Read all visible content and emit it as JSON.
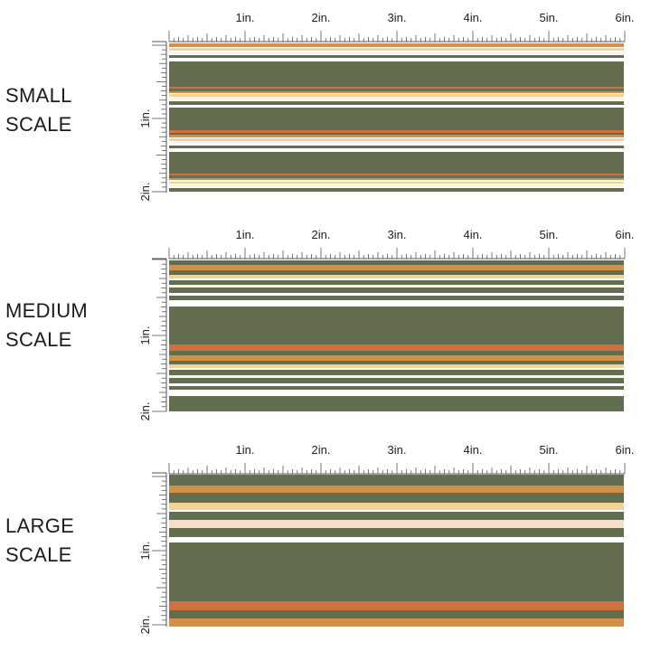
{
  "colors": {
    "olive": "#636d4f",
    "orange": "#d0703e",
    "mustard": "#d28f45",
    "cream": "#f4d293",
    "ivory": "#fbf5e6",
    "peach": "#f8ddc9",
    "white": "#ffffff",
    "ruler": "#555555"
  },
  "ruler": {
    "inch_labels": [
      "1in.",
      "2in.",
      "3in.",
      "4in.",
      "5in.",
      "6in."
    ]
  },
  "sections": [
    {
      "id": "small",
      "label": "SMALL\nSCALE",
      "vertical_labels": [
        "1in.",
        "2in."
      ],
      "stripes": [
        [
          "mustard",
          3
        ],
        [
          "white",
          1
        ],
        [
          "cream",
          2
        ],
        [
          "white",
          1
        ],
        [
          "ivory",
          2
        ],
        [
          "white",
          1
        ],
        [
          "olive",
          3
        ],
        [
          "white",
          3
        ],
        [
          "olive",
          22
        ],
        [
          "orange",
          2
        ],
        [
          "olive",
          2
        ],
        [
          "mustard",
          2
        ],
        [
          "white",
          1
        ],
        [
          "cream",
          2
        ],
        [
          "white",
          1
        ],
        [
          "ivory",
          2
        ],
        [
          "white",
          1
        ],
        [
          "olive",
          3
        ],
        [
          "white",
          3
        ],
        [
          "olive",
          20
        ],
        [
          "orange",
          2
        ],
        [
          "olive",
          2
        ],
        [
          "mustard",
          2
        ],
        [
          "white",
          1
        ],
        [
          "cream",
          2
        ],
        [
          "white",
          1
        ],
        [
          "ivory",
          2
        ],
        [
          "white",
          1
        ],
        [
          "olive",
          3
        ],
        [
          "white",
          3
        ],
        [
          "olive",
          19
        ],
        [
          "orange",
          2
        ],
        [
          "olive",
          2
        ],
        [
          "mustard",
          2
        ],
        [
          "white",
          1
        ],
        [
          "cream",
          2
        ],
        [
          "white",
          1
        ],
        [
          "ivory",
          2
        ],
        [
          "white",
          1
        ],
        [
          "olive",
          3
        ],
        [
          "white",
          1
        ]
      ]
    },
    {
      "id": "medium",
      "label": "MEDIUM\nSCALE",
      "vertical_labels": [
        "1in.",
        "2in."
      ],
      "stripes": [
        [
          "olive",
          5
        ],
        [
          "mustard",
          6
        ],
        [
          "olive",
          4
        ],
        [
          "cream",
          4
        ],
        [
          "white",
          2
        ],
        [
          "olive",
          5
        ],
        [
          "ivory",
          3
        ],
        [
          "olive",
          6
        ],
        [
          "white",
          3
        ],
        [
          "olive",
          4
        ],
        [
          "white",
          7
        ],
        [
          "olive",
          41
        ],
        [
          "orange",
          6
        ],
        [
          "olive",
          5
        ],
        [
          "mustard",
          6
        ],
        [
          "olive",
          4
        ],
        [
          "cream",
          4
        ],
        [
          "white",
          2
        ],
        [
          "olive",
          5
        ],
        [
          "ivory",
          3
        ],
        [
          "olive",
          6
        ],
        [
          "white",
          3
        ],
        [
          "olive",
          4
        ],
        [
          "white",
          7
        ],
        [
          "olive",
          16
        ]
      ]
    },
    {
      "id": "large",
      "label": "LARGE\nSCALE",
      "vertical_labels": [
        "1in.",
        "2in."
      ],
      "stripes": [
        [
          "olive",
          12
        ],
        [
          "mustard",
          8
        ],
        [
          "olive",
          10
        ],
        [
          "cream",
          8
        ],
        [
          "white",
          2
        ],
        [
          "olive",
          9
        ],
        [
          "peach",
          9
        ],
        [
          "olive",
          9
        ],
        [
          "white",
          6
        ],
        [
          "olive",
          64
        ],
        [
          "orange",
          9
        ],
        [
          "olive",
          9
        ],
        [
          "mustard",
          9
        ]
      ]
    }
  ]
}
